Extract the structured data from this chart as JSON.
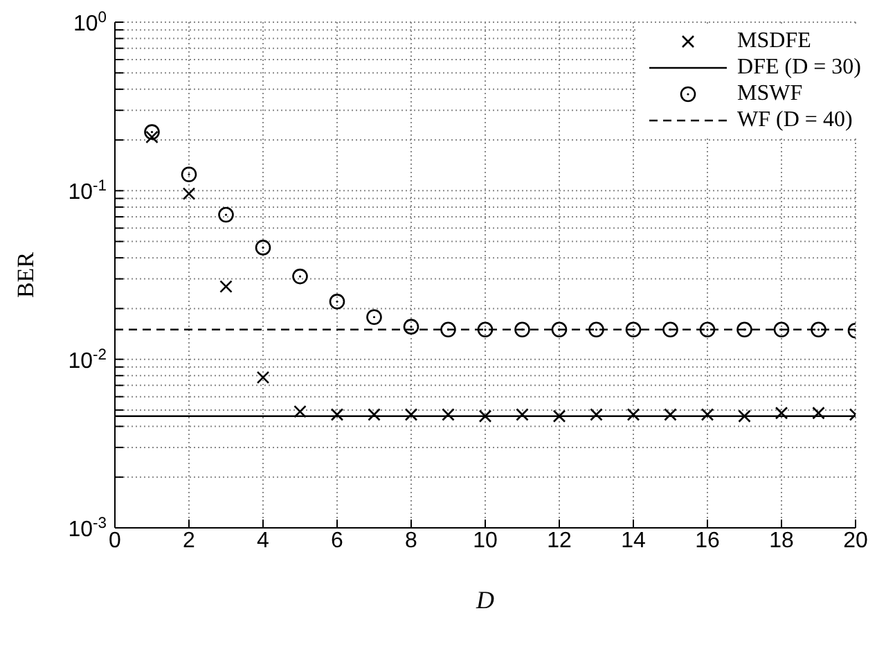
{
  "chart_data": {
    "type": "scatter",
    "xlabel": "D",
    "ylabel": "BER",
    "log": "y",
    "grid": true,
    "legend": "top right",
    "xlim": [
      0,
      20
    ],
    "xticks": [
      0,
      2,
      4,
      6,
      8,
      10,
      12,
      14,
      16,
      18,
      20
    ],
    "ylim": [
      0.001,
      1
    ],
    "yticks": [
      {
        "value": 0.001,
        "label": "10$^{-3}$"
      },
      {
        "value": 0.002,
        "label": null
      },
      {
        "value": 0.003,
        "label": null
      },
      {
        "value": 0.004,
        "label": null
      },
      {
        "value": 0.005,
        "label": null
      },
      {
        "value": 0.006,
        "label": null
      },
      {
        "value": 0.007,
        "label": null
      },
      {
        "value": 0.008,
        "label": null
      },
      {
        "value": 0.009,
        "label": null
      },
      {
        "value": 0.01,
        "label": "10$^{-2}$"
      },
      {
        "value": 0.02,
        "label": null
      },
      {
        "value": 0.03,
        "label": null
      },
      {
        "value": 0.04,
        "label": null
      },
      {
        "value": 0.05,
        "label": null
      },
      {
        "value": 0.06,
        "label": null
      },
      {
        "value": 0.07,
        "label": null
      },
      {
        "value": 0.08,
        "label": null
      },
      {
        "value": 0.09,
        "label": null
      },
      {
        "value": 0.1,
        "label": "10$^{-1}$"
      },
      {
        "value": 0.2,
        "label": null
      },
      {
        "value": 0.3,
        "label": null
      },
      {
        "value": 0.4,
        "label": null
      },
      {
        "value": 0.5,
        "label": null
      },
      {
        "value": 0.6,
        "label": null
      },
      {
        "value": 0.7,
        "label": null
      },
      {
        "value": 0.8,
        "label": null
      },
      {
        "value": 0.9,
        "label": null
      },
      {
        "value": 1,
        "label": "10$^{0}$"
      }
    ],
    "series": [
      {
        "name": "MSDFE",
        "marker": "cross",
        "color": "#000000",
        "x": [
          1,
          2,
          3,
          4,
          5,
          6,
          7,
          8,
          9,
          10,
          11,
          12,
          13,
          14,
          15,
          16,
          17,
          18,
          19,
          20
        ],
        "values": [
          0.208,
          0.096,
          0.027,
          0.0078,
          0.0049,
          0.0047,
          0.0047,
          0.0047,
          0.0047,
          0.0046,
          0.0047,
          0.0046,
          0.0047,
          0.0047,
          0.0047,
          0.0047,
          0.0046,
          0.0048,
          0.0048,
          0.0047
        ]
      },
      {
        "name": "DFE (D = 30)",
        "type": "line",
        "line_style": "solid",
        "marker": "none",
        "color": "#000000",
        "x": [
          0,
          20
        ],
        "values": [
          0.0046,
          0.0046
        ]
      },
      {
        "name": "MSWF",
        "marker": "circle",
        "color": "#000000",
        "x": [
          1,
          2,
          3,
          4,
          5,
          6,
          7,
          8,
          9,
          10,
          11,
          12,
          13,
          14,
          15,
          16,
          17,
          18,
          19,
          20
        ],
        "values": [
          0.223,
          0.125,
          0.072,
          0.046,
          0.031,
          0.022,
          0.0178,
          0.0156,
          0.015,
          0.015,
          0.015,
          0.015,
          0.015,
          0.015,
          0.015,
          0.015,
          0.015,
          0.015,
          0.015,
          0.0148
        ]
      },
      {
        "name": "WF (D = 40)",
        "type": "line",
        "line_style": "dashed",
        "marker": "none",
        "color": "#000000",
        "x": [
          0,
          20
        ],
        "values": [
          0.015,
          0.015
        ]
      }
    ]
  }
}
